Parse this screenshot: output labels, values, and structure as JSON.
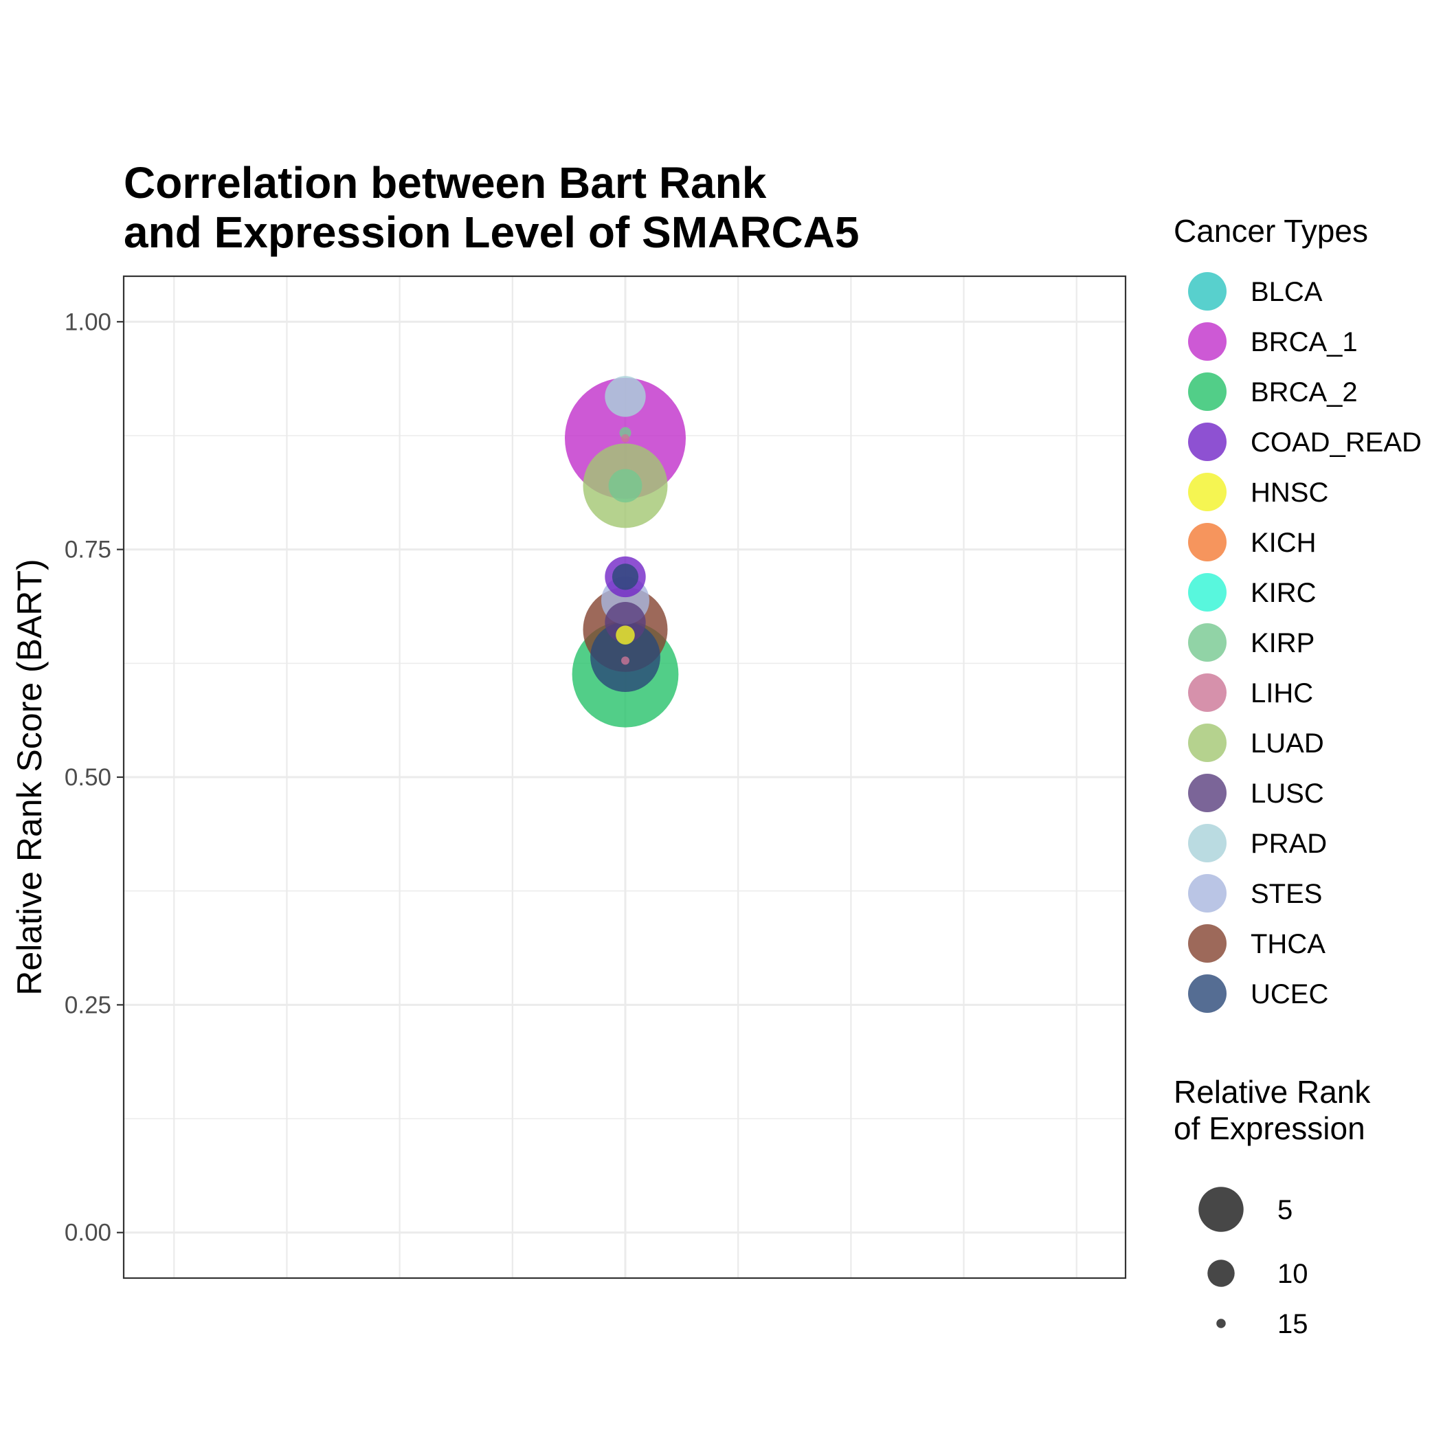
{
  "chart_data": {
    "type": "scatter",
    "title_lines": [
      "Correlation between Bart Rank",
      "and Expression Level of SMARCA5"
    ],
    "xlabel": "",
    "ylabel": "Relative Rank Score (BART)",
    "ylim": [
      -0.05,
      1.05
    ],
    "y_ticks": [
      0.0,
      0.25,
      0.5,
      0.75,
      1.0
    ],
    "y_tick_labels": [
      "0.00",
      "0.25",
      "0.50",
      "0.75",
      "1.00"
    ],
    "grid": true,
    "color_legend": {
      "title": "Cancer Types",
      "position": "right",
      "entries": [
        {
          "name": "BLCA",
          "color": "#2EC4C0"
        },
        {
          "name": "BRCA_1",
          "color": "#C12FCB"
        },
        {
          "name": "BRCA_2",
          "color": "#27C26A"
        },
        {
          "name": "COAD_READ",
          "color": "#7226C7"
        },
        {
          "name": "HNSC",
          "color": "#F2F227"
        },
        {
          "name": "KICH",
          "color": "#F47A35"
        },
        {
          "name": "KIRC",
          "color": "#2EF5D4"
        },
        {
          "name": "KIRP",
          "color": "#76C890"
        },
        {
          "name": "LIHC",
          "color": "#CC7696"
        },
        {
          "name": "LUAD",
          "color": "#A2C772"
        },
        {
          "name": "LUSC",
          "color": "#5A3F7E"
        },
        {
          "name": "PRAD",
          "color": "#A9D2DA"
        },
        {
          "name": "STES",
          "color": "#A9B6DF"
        },
        {
          "name": "THCA",
          "color": "#844331"
        },
        {
          "name": "UCEC",
          "color": "#2A4978"
        }
      ]
    },
    "size_legend": {
      "title_lines": [
        "Relative Rank",
        "of Expression"
      ],
      "entries": [
        {
          "label": "5",
          "value": 5
        },
        {
          "label": "10",
          "value": 10
        },
        {
          "label": "15",
          "value": 15
        }
      ],
      "color": "#333333"
    },
    "points": [
      {
        "series": "BRCA_1",
        "y": 0.872,
        "rank": 1
      },
      {
        "series": "BRCA_2",
        "y": 0.613,
        "rank": 3
      },
      {
        "series": "LUAD",
        "y": 0.82,
        "rank": 6
      },
      {
        "series": "THCA",
        "y": 0.662,
        "rank": 6
      },
      {
        "series": "UCEC",
        "y": 0.632,
        "rank": 8
      },
      {
        "series": "STES",
        "y": 0.694,
        "rank": 11
      },
      {
        "series": "COAD_READ",
        "y": 0.72,
        "rank": 12
      },
      {
        "series": "LUSC",
        "y": 0.67,
        "rank": 12
      },
      {
        "series": "PRAD",
        "y": 0.918,
        "rank": 12
      },
      {
        "series": "KIRP",
        "y": 0.82,
        "rank": 13
      },
      {
        "series": "UCEC",
        "y": 0.72,
        "rank": 14
      },
      {
        "series": "HNSC",
        "y": 0.656,
        "rank": 15
      },
      {
        "series": "KIRP",
        "y": 0.878,
        "rank": 16
      },
      {
        "series": "LIHC",
        "y": 0.872,
        "rank": 17
      },
      {
        "series": "LIHC",
        "y": 0.628,
        "rank": 17
      }
    ]
  }
}
